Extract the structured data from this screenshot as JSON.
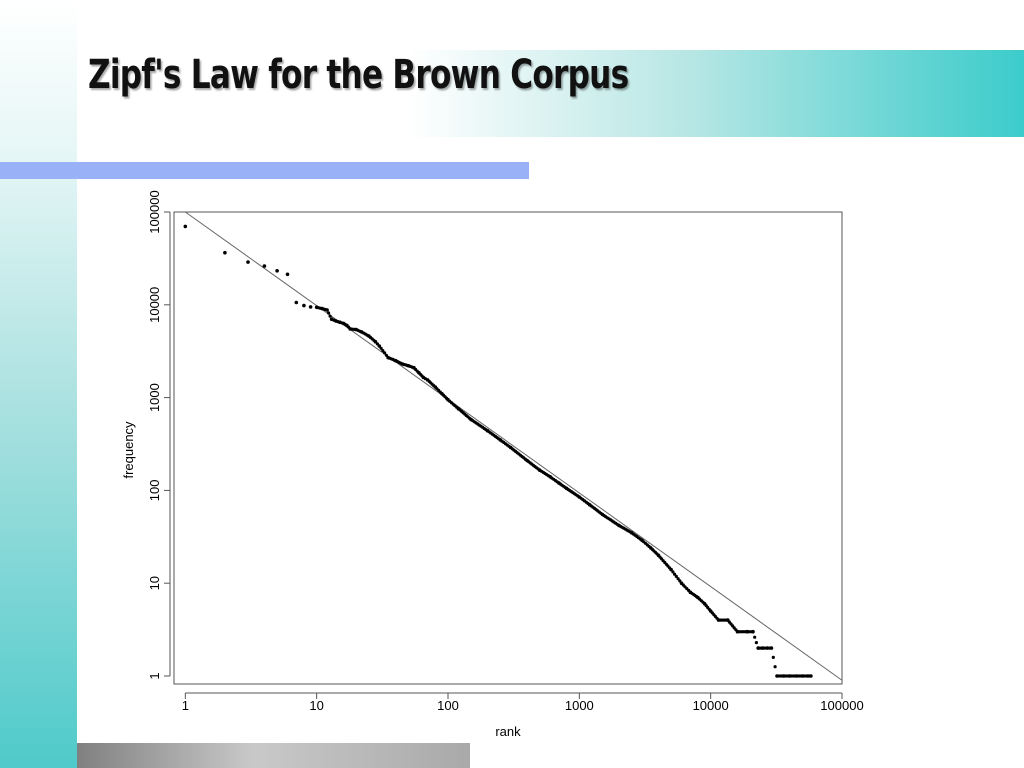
{
  "slide": {
    "title": "Zipf's Law for the Brown Corpus"
  },
  "chart_data": {
    "type": "scatter",
    "title": "",
    "xlabel": "rank",
    "ylabel": "frequency",
    "x_scale": "log",
    "y_scale": "log",
    "xlim": [
      0.82,
      100000
    ],
    "ylim": [
      0.82,
      100000
    ],
    "grid": false,
    "x_ticks": [
      1,
      10,
      100,
      1000,
      10000,
      100000
    ],
    "x_tick_labels": [
      "1",
      "10",
      "100",
      "1000",
      "10000",
      "100000"
    ],
    "y_ticks": [
      1,
      10,
      100,
      1000,
      10000,
      100000
    ],
    "y_tick_labels": [
      "1",
      "10",
      "100",
      "1000",
      "10000",
      "100000"
    ],
    "series": [
      {
        "kind": "points",
        "x": [
          1,
          2,
          3,
          4,
          5,
          6,
          7,
          8,
          9,
          10,
          11,
          12,
          13,
          14,
          15,
          16,
          17,
          18,
          20,
          22,
          25,
          28,
          30,
          35,
          40,
          45,
          50,
          55,
          60,
          65,
          70,
          80,
          90,
          100,
          120,
          150,
          200,
          250,
          300,
          400,
          500,
          600,
          700,
          800,
          1000,
          1200,
          1500,
          2000,
          2500,
          3000,
          3500,
          4000,
          5000,
          6000,
          7000,
          8000,
          9000,
          10000,
          11500,
          13500,
          16000,
          19000,
          21000,
          23000,
          25000,
          27000,
          29000,
          32000,
          36000,
          40000,
          45000,
          50000,
          55000,
          58000
        ],
        "y": [
          69970,
          36410,
          28850,
          26150,
          23240,
          21340,
          10590,
          9810,
          9500,
          9400,
          9100,
          8800,
          7000,
          6700,
          6500,
          6300,
          6000,
          5500,
          5400,
          5100,
          4600,
          4000,
          3600,
          2700,
          2500,
          2300,
          2200,
          2100,
          1850,
          1650,
          1550,
          1300,
          1100,
          950,
          760,
          580,
          440,
          350,
          290,
          210,
          165,
          140,
          120,
          105,
          85,
          70,
          55,
          42,
          35,
          29,
          24,
          20,
          14,
          10,
          8,
          7,
          6,
          5,
          4,
          4,
          3,
          3,
          3,
          2,
          2,
          2,
          2,
          1,
          1,
          1,
          1,
          1,
          1,
          1
        ]
      },
      {
        "kind": "reference-line",
        "x": [
          1,
          100000
        ],
        "y": [
          100000,
          0.9
        ]
      }
    ]
  }
}
